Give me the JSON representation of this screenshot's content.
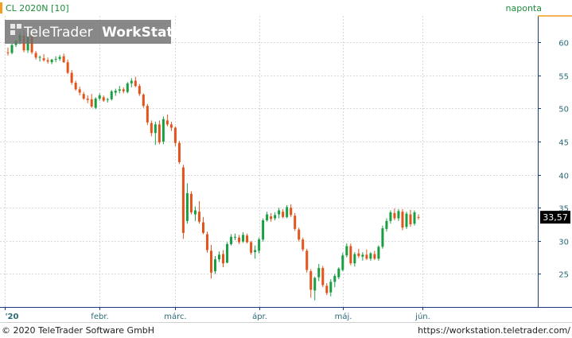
{
  "header": {
    "series_label": "CL 2020N [10]",
    "period_label": "naponta"
  },
  "logo": {
    "brand_part1": "TeleTrader",
    "brand_part2": "WorkStation"
  },
  "footer": {
    "copyright": "© 2020 TeleTrader Software GmbH",
    "url": "https://workstation.teletrader.com/"
  },
  "colors": {
    "up": "#1a9e44",
    "down": "#e2541b",
    "grid": "#d8d8d8",
    "axis_text": "#2a6a78",
    "accent_orange": "#f39c1d",
    "plot_border": "#1a3a7a"
  },
  "chart_data": {
    "type": "candlestick",
    "instrument": "CL 2020N [10]",
    "interval": "naponta",
    "y_axis": {
      "position": "right",
      "range": [
        20,
        64
      ],
      "ticks": [
        25,
        30,
        35,
        40,
        45,
        50,
        55,
        60
      ]
    },
    "x_axis_labels": [
      "'20",
      "febr.",
      "márc.",
      "ápr.",
      "máj.",
      "jún."
    ],
    "last_price": 33.57,
    "last_price_label": "33,57",
    "grid": true,
    "candles": [
      [
        58.5,
        59.2,
        58.0,
        58.4
      ],
      [
        58.4,
        59.8,
        58.2,
        59.6
      ],
      [
        59.6,
        60.4,
        59.3,
        60.2
      ],
      [
        60.2,
        61.5,
        59.7,
        61.1
      ],
      [
        61.0,
        61.8,
        58.5,
        58.8
      ],
      [
        58.8,
        62.0,
        58.4,
        61.4
      ],
      [
        61.2,
        61.5,
        58.2,
        58.5
      ],
      [
        58.4,
        58.7,
        57.4,
        57.7
      ],
      [
        57.7,
        58.0,
        57.1,
        57.8
      ],
      [
        57.6,
        58.2,
        57.1,
        57.3
      ],
      [
        57.3,
        57.7,
        56.8,
        57.1
      ],
      [
        57.0,
        57.5,
        56.7,
        57.4
      ],
      [
        57.4,
        57.9,
        57.0,
        57.5
      ],
      [
        57.5,
        58.1,
        57.2,
        57.8
      ],
      [
        57.9,
        58.3,
        56.9,
        57.0
      ],
      [
        57.0,
        57.4,
        55.2,
        55.4
      ],
      [
        55.4,
        55.8,
        53.6,
        53.9
      ],
      [
        53.9,
        54.2,
        52.7,
        52.9
      ],
      [
        52.9,
        53.3,
        52.0,
        52.4
      ],
      [
        52.2,
        52.5,
        51.3,
        51.5
      ],
      [
        51.5,
        52.0,
        50.8,
        51.3
      ],
      [
        51.4,
        52.2,
        50.1,
        50.3
      ],
      [
        50.1,
        51.7,
        49.9,
        51.5
      ],
      [
        51.5,
        52.3,
        51.2,
        52.0
      ],
      [
        51.7,
        52.0,
        51.0,
        51.2
      ],
      [
        51.3,
        51.6,
        50.9,
        51.4
      ],
      [
        51.4,
        52.8,
        51.2,
        52.6
      ],
      [
        52.4,
        53.0,
        51.9,
        52.7
      ],
      [
        52.7,
        53.4,
        52.3,
        52.9
      ],
      [
        52.9,
        53.2,
        52.3,
        52.6
      ],
      [
        52.5,
        54.0,
        52.3,
        53.8
      ],
      [
        53.8,
        54.6,
        53.2,
        54.2
      ],
      [
        54.2,
        54.8,
        53.2,
        53.4
      ],
      [
        53.4,
        53.7,
        51.9,
        52.2
      ],
      [
        52.1,
        52.3,
        50.1,
        50.4
      ],
      [
        50.4,
        50.7,
        47.5,
        47.9
      ],
      [
        47.8,
        48.2,
        45.8,
        46.3
      ],
      [
        46.3,
        48.0,
        44.5,
        47.6
      ],
      [
        47.6,
        48.2,
        44.6,
        44.9
      ],
      [
        45.0,
        48.8,
        44.6,
        48.4
      ],
      [
        48.2,
        49.1,
        47.3,
        47.6
      ],
      [
        47.6,
        48.0,
        46.6,
        47.1
      ],
      [
        47.1,
        47.3,
        44.3,
        44.8
      ],
      [
        44.8,
        45.1,
        41.6,
        41.9
      ],
      [
        41.1,
        41.5,
        30.3,
        31.2
      ],
      [
        33.0,
        38.7,
        32.6,
        37.2
      ],
      [
        37.1,
        37.5,
        34.0,
        34.3
      ],
      [
        34.0,
        35.2,
        33.0,
        34.6
      ],
      [
        34.4,
        36.0,
        32.6,
        32.9
      ],
      [
        32.8,
        33.6,
        31.0,
        31.2
      ],
      [
        31.0,
        31.4,
        28.2,
        28.6
      ],
      [
        28.5,
        29.4,
        24.3,
        25.2
      ],
      [
        25.4,
        27.7,
        25.0,
        27.2
      ],
      [
        27.2,
        28.4,
        26.8,
        27.9
      ],
      [
        28.0,
        28.6,
        26.0,
        26.6
      ],
      [
        26.7,
        29.8,
        26.6,
        29.5
      ],
      [
        29.5,
        31.0,
        29.3,
        30.6
      ],
      [
        30.5,
        31.1,
        30.1,
        30.6
      ],
      [
        30.5,
        30.9,
        29.5,
        29.8
      ],
      [
        29.9,
        31.3,
        29.7,
        30.9
      ],
      [
        30.8,
        31.1,
        29.6,
        29.8
      ],
      [
        29.8,
        30.0,
        27.9,
        28.2
      ],
      [
        28.3,
        29.3,
        27.3,
        28.6
      ],
      [
        28.5,
        30.5,
        28.1,
        30.2
      ],
      [
        30.2,
        33.4,
        29.9,
        33.1
      ],
      [
        33.1,
        34.4,
        32.9,
        34.0
      ],
      [
        33.7,
        34.2,
        32.9,
        33.3
      ],
      [
        33.4,
        34.3,
        33.1,
        33.9
      ],
      [
        34.0,
        35.0,
        33.4,
        34.6
      ],
      [
        34.4,
        34.8,
        33.4,
        33.6
      ],
      [
        33.6,
        35.4,
        33.4,
        35.1
      ],
      [
        35.0,
        35.5,
        33.6,
        33.9
      ],
      [
        33.8,
        34.2,
        31.5,
        31.8
      ],
      [
        31.7,
        32.0,
        29.9,
        30.2
      ],
      [
        30.2,
        30.5,
        28.4,
        28.7
      ],
      [
        28.5,
        28.8,
        25.2,
        25.6
      ],
      [
        25.4,
        25.7,
        21.4,
        22.6
      ],
      [
        22.5,
        24.6,
        21.0,
        24.4
      ],
      [
        24.5,
        26.5,
        23.9,
        25.9
      ],
      [
        25.9,
        26.2,
        23.0,
        23.3
      ],
      [
        23.2,
        23.6,
        21.8,
        22.1
      ],
      [
        22.2,
        24.2,
        21.6,
        23.8
      ],
      [
        23.8,
        25.0,
        23.0,
        24.7
      ],
      [
        24.5,
        26.0,
        24.2,
        25.8
      ],
      [
        25.6,
        28.2,
        25.4,
        27.8
      ],
      [
        27.8,
        29.6,
        27.5,
        29.2
      ],
      [
        29.2,
        29.6,
        26.3,
        26.6
      ],
      [
        26.6,
        28.3,
        26.1,
        28.0
      ],
      [
        28.1,
        28.8,
        27.4,
        27.7
      ],
      [
        27.6,
        28.3,
        27.0,
        27.9
      ],
      [
        27.9,
        28.7,
        27.1,
        27.3
      ],
      [
        27.3,
        28.3,
        27.0,
        28.1
      ],
      [
        28.0,
        28.5,
        27.1,
        27.3
      ],
      [
        27.3,
        29.3,
        27.0,
        29.1
      ],
      [
        29.1,
        32.3,
        28.8,
        31.9
      ],
      [
        31.8,
        33.4,
        31.4,
        33.0
      ],
      [
        33.0,
        34.6,
        32.6,
        34.3
      ],
      [
        34.2,
        34.9,
        33.1,
        33.4
      ],
      [
        33.4,
        34.8,
        33.0,
        34.5
      ],
      [
        34.4,
        34.8,
        31.6,
        32.0
      ],
      [
        32.1,
        34.4,
        31.8,
        34.1
      ],
      [
        34.0,
        34.7,
        32.1,
        32.5
      ],
      [
        32.6,
        34.6,
        32.3,
        34.3
      ],
      [
        33.6,
        34.0,
        33.2,
        33.57
      ]
    ]
  }
}
